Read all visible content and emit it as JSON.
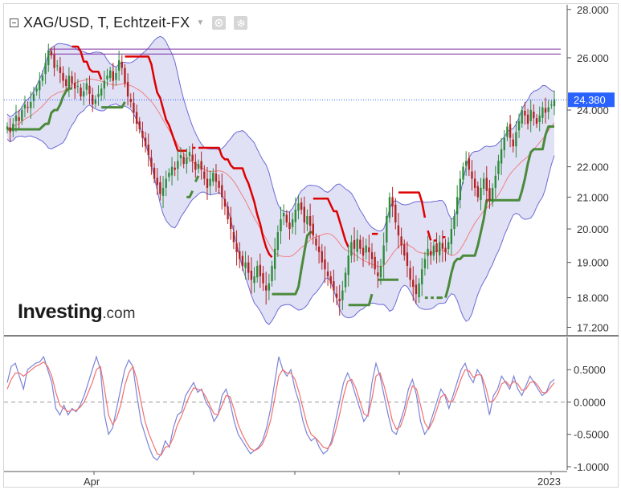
{
  "header": {
    "symbol": "XAG/USD, T, Echtzeit-FX",
    "collapse_icon": "minus-square-icon",
    "dropdown_icon": "caret-down-icon",
    "eye_icon": "eye-icon",
    "settings_icon": "gear-icon"
  },
  "logo": {
    "brand": "Investing",
    "suffix": ".com"
  },
  "chart_data": [
    {
      "type": "candlestick",
      "price_axis": {
        "ylim": [
          17.0,
          28.2
        ],
        "tick_labels": [
          "28.000",
          "26.000",
          "24.000",
          "22.000",
          "21.000",
          "20.000",
          "19.000",
          "18.000",
          "17.200"
        ],
        "tick_values": [
          28.0,
          26.0,
          24.0,
          22.0,
          21.0,
          20.0,
          19.0,
          18.0,
          17.2
        ],
        "scale": "log"
      },
      "x_axis": {
        "tick_labels": [
          "Apr",
          "2023"
        ]
      },
      "last_price": {
        "value": 24.38,
        "label": "24.380",
        "color": "#2962ff"
      },
      "horizontal_lines": [
        {
          "value": 26.35,
          "color": "#7b2fa0"
        },
        {
          "value": 26.15,
          "color": "#7b2fa0"
        }
      ],
      "colors": {
        "up": "#2e8b3a",
        "down": "#b22222",
        "band_fill": "#dcdcf5",
        "band_line": "#6b6bd6",
        "mid_line": "#f08080",
        "red_line": "#dd0000",
        "green_line": "#4a8a3a"
      },
      "close": [
        23.4,
        23.2,
        23.5,
        23.8,
        23.6,
        24.0,
        24.2,
        24.1,
        24.3,
        24.6,
        24.8,
        25.1,
        25.3,
        25.8,
        26.3,
        26.1,
        25.6,
        25.7,
        25.4,
        25.1,
        24.9,
        25.3,
        25.0,
        24.8,
        24.9,
        24.5,
        24.7,
        25.0,
        24.6,
        24.2,
        24.4,
        24.6,
        24.8,
        25.1,
        25.3,
        25.5,
        25.1,
        25.4,
        25.9,
        25.6,
        25.0,
        24.5,
        24.3,
        23.9,
        23.5,
        23.3,
        23.0,
        22.7,
        22.4,
        22.0,
        21.6,
        21.4,
        21.1,
        21.3,
        21.6,
        21.8,
        22.0,
        21.9,
        22.2,
        22.4,
        22.1,
        22.3,
        22.5,
        22.2,
        21.9,
        22.1,
        21.9,
        21.6,
        21.3,
        21.6,
        21.8,
        21.5,
        21.3,
        21.0,
        20.7,
        20.3,
        20.0,
        19.6,
        19.3,
        19.1,
        18.9,
        19.0,
        18.7,
        18.5,
        18.6,
        18.9,
        18.6,
        18.4,
        18.2,
        18.4,
        18.9,
        19.4,
        19.9,
        20.3,
        20.5,
        20.2,
        20.0,
        20.3,
        20.6,
        20.8,
        20.6,
        20.2,
        20.4,
        20.1,
        19.8,
        19.5,
        19.3,
        19.0,
        18.8,
        18.6,
        18.4,
        18.2,
        18.0,
        17.9,
        18.2,
        18.7,
        19.2,
        19.6,
        19.4,
        19.7,
        19.4,
        19.2,
        19.5,
        19.3,
        19.1,
        18.8,
        18.6,
        18.9,
        19.5,
        20.4,
        21.0,
        20.7,
        20.2,
        19.8,
        19.5,
        19.2,
        18.9,
        18.5,
        18.3,
        18.1,
        18.4,
        18.8,
        19.1,
        19.4,
        19.2,
        19.5,
        19.3,
        19.6,
        19.4,
        19.3,
        19.6,
        20.0,
        20.4,
        21.0,
        21.6,
        22.0,
        22.2,
        21.9,
        21.6,
        21.3,
        21.0,
        21.3,
        21.6,
        21.2,
        20.9,
        21.3,
        21.7,
        22.2,
        22.6,
        23.0,
        23.4,
        23.0,
        22.7,
        23.2,
        23.6,
        24.0,
        23.8,
        23.5,
        24.0,
        23.7,
        23.5,
        23.8,
        24.1,
        23.9,
        24.1,
        24.2,
        24.4
      ],
      "indicator": {
        "type": "line",
        "ylim": [
          -1.05,
          1.0
        ],
        "tick_labels": [
          "0.5000",
          "0.0000",
          "-0.5000",
          "-1.0000"
        ],
        "tick_values": [
          0.5,
          0.0,
          -0.5,
          -1.0
        ],
        "zero_line": true,
        "series": [
          {
            "values": [
              0.3,
              0.55,
              0.6,
              0.4,
              0.2,
              0.5,
              0.55,
              0.6,
              0.62,
              0.7,
              0.5,
              0.3,
              -0.1,
              -0.2,
              -0.05,
              -0.2,
              -0.1,
              -0.15,
              -0.05,
              0.1,
              0.3,
              0.5,
              0.7,
              0.5,
              -0.2,
              -0.5,
              -0.4,
              -0.1,
              0.2,
              0.5,
              0.65,
              0.55,
              0.1,
              -0.3,
              -0.5,
              -0.7,
              -0.85,
              -0.9,
              -0.8,
              -0.6,
              -0.7,
              -0.4,
              -0.2,
              -0.15,
              0.1,
              0.2,
              0.3,
              0.15,
              0.2,
              0.0,
              -0.1,
              -0.3,
              -0.2,
              0.1,
              0.2,
              0.0,
              -0.3,
              -0.5,
              -0.6,
              -0.7,
              -0.8,
              -0.75,
              -0.7,
              -0.6,
              -0.4,
              -0.1,
              0.3,
              0.7,
              0.5,
              0.4,
              0.5,
              0.2,
              0.0,
              -0.3,
              -0.5,
              -0.6,
              -0.55,
              -0.7,
              -0.8,
              -0.75,
              -0.6,
              -0.3,
              0.0,
              0.3,
              0.45,
              0.3,
              0.1,
              -0.1,
              -0.3,
              -0.2,
              0.3,
              0.6,
              0.4,
              0.1,
              -0.2,
              -0.45,
              -0.5,
              -0.3,
              -0.1,
              0.2,
              0.35,
              0.1,
              -0.3,
              -0.5,
              -0.4,
              -0.2,
              0.0,
              0.2,
              0.1,
              -0.1,
              0.1,
              0.3,
              0.5,
              0.6,
              0.4,
              0.3,
              0.5,
              0.4,
              0.1,
              -0.2,
              0.1,
              0.2,
              0.4,
              0.3,
              0.2,
              0.4,
              0.2,
              0.1,
              0.25,
              0.4,
              0.3,
              0.2,
              0.1,
              0.15,
              0.3,
              0.35
            ],
            "color": "#7b83d6"
          },
          {
            "values": [
              0.2,
              0.35,
              0.45,
              0.45,
              0.4,
              0.45,
              0.5,
              0.55,
              0.58,
              0.62,
              0.55,
              0.4,
              0.15,
              -0.05,
              -0.1,
              -0.15,
              -0.12,
              -0.13,
              -0.08,
              0.0,
              0.15,
              0.3,
              0.5,
              0.55,
              0.2,
              -0.2,
              -0.35,
              -0.25,
              -0.05,
              0.25,
              0.45,
              0.55,
              0.35,
              0.0,
              -0.3,
              -0.5,
              -0.65,
              -0.8,
              -0.82,
              -0.7,
              -0.68,
              -0.55,
              -0.35,
              -0.22,
              -0.05,
              0.1,
              0.22,
              0.2,
              0.18,
              0.08,
              -0.05,
              -0.18,
              -0.2,
              -0.05,
              0.1,
              0.08,
              -0.12,
              -0.35,
              -0.5,
              -0.62,
              -0.72,
              -0.75,
              -0.72,
              -0.65,
              -0.5,
              -0.28,
              0.05,
              0.4,
              0.5,
              0.45,
              0.45,
              0.35,
              0.15,
              -0.1,
              -0.35,
              -0.5,
              -0.55,
              -0.62,
              -0.7,
              -0.72,
              -0.65,
              -0.45,
              -0.2,
              0.1,
              0.32,
              0.35,
              0.22,
              0.02,
              -0.18,
              -0.22,
              0.05,
              0.4,
              0.45,
              0.25,
              0.0,
              -0.28,
              -0.42,
              -0.38,
              -0.2,
              0.05,
              0.25,
              0.2,
              -0.05,
              -0.32,
              -0.42,
              -0.3,
              -0.12,
              0.08,
              0.12,
              0.0,
              0.02,
              0.18,
              0.36,
              0.5,
              0.48,
              0.38,
              0.42,
              0.42,
              0.25,
              0.0,
              0.02,
              0.12,
              0.28,
              0.32,
              0.25,
              0.32,
              0.28,
              0.18,
              0.2,
              0.3,
              0.32,
              0.25,
              0.15,
              0.14,
              0.22,
              0.3
            ],
            "color": "#f07070"
          }
        ]
      }
    }
  ]
}
